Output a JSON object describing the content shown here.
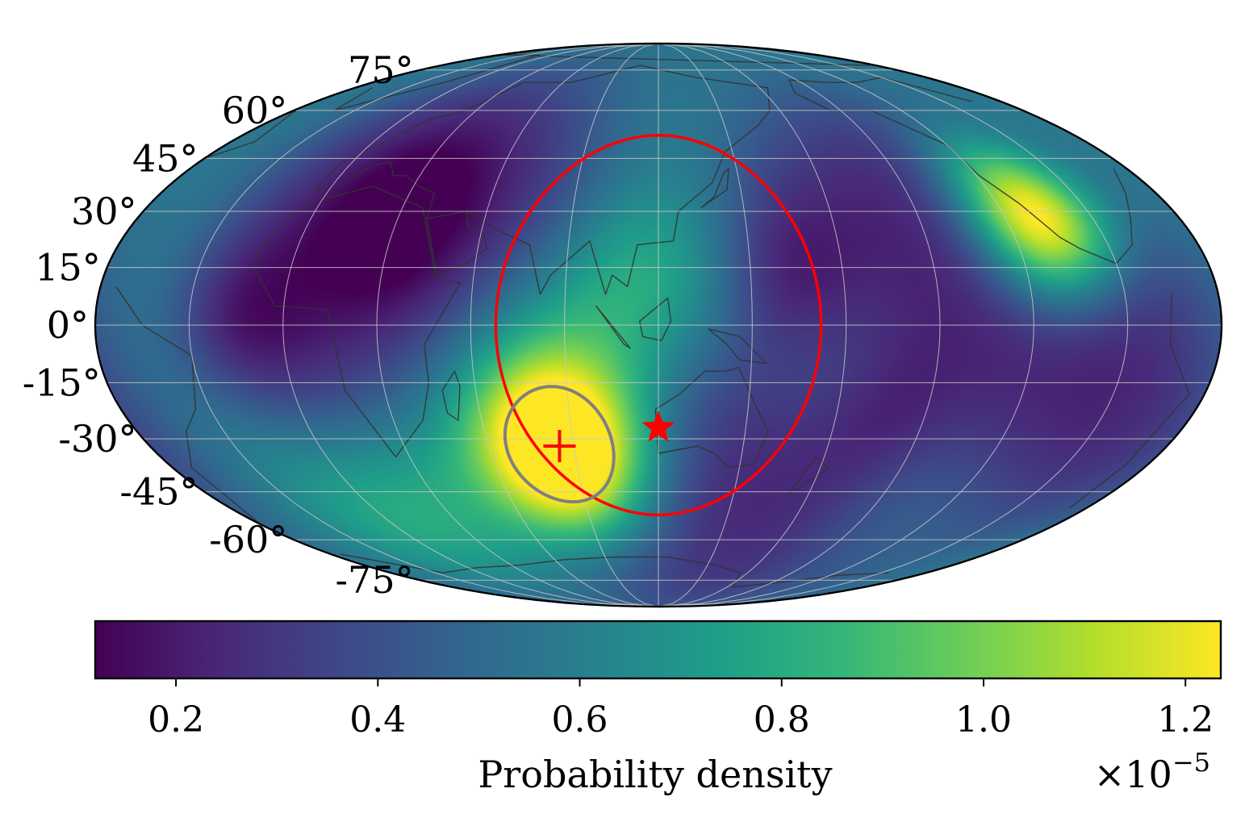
{
  "chart_data": {
    "type": "heatmap",
    "projection": "mollweide",
    "title": "",
    "grid": true,
    "latitude_ticks": [
      75,
      60,
      45,
      30,
      15,
      0,
      -15,
      -30,
      -45,
      -60,
      -75
    ],
    "latitude_labels": [
      "75°",
      "60°",
      "45°",
      "30°",
      "15°",
      "0°",
      "-15°",
      "-30°",
      "-45°",
      "-60°",
      "-75°"
    ],
    "longitude_grid_step_deg": 30,
    "central_longitude_deg": 115,
    "colormap": "viridis",
    "colors": {
      "viridis": [
        "#440154",
        "#482878",
        "#3e4989",
        "#31688e",
        "#26828e",
        "#1f9e89",
        "#35b779",
        "#6ece58",
        "#b5de2b",
        "#fde725"
      ],
      "contour_outer": "#ff0000",
      "contour_inner": "#808080",
      "markers": "#ff0000",
      "coastline": "#333333",
      "gridline": "#c8c8c8"
    },
    "hotspots": [
      {
        "name": "primary-mode",
        "lon_deg": 80,
        "lat_deg": -32,
        "value": 1.2e-05
      },
      {
        "name": "secondary-mode",
        "lon_deg": -115,
        "lat_deg": 28,
        "value": 1.2e-05
      }
    ],
    "colorbar": {
      "label": "Probability density",
      "range": [
        0.12,
        1.235
      ],
      "ticks": [
        0.2,
        0.4,
        0.6,
        0.8,
        1.0,
        1.2
      ],
      "tick_labels": [
        "0.2",
        "0.4",
        "0.6",
        "0.8",
        "1.0",
        "1.2"
      ],
      "scale_base": "×10",
      "scale_exp": "−5"
    },
    "markers": [
      {
        "symbol": "plus",
        "name": "estimated-source",
        "lon_deg": 80,
        "lat_deg": -32
      },
      {
        "symbol": "star",
        "name": "true-source",
        "lon_deg": 115,
        "lat_deg": -27
      }
    ],
    "contours": [
      {
        "name": "outer-credible-region",
        "center_lon_deg": 115,
        "center_lat_deg": 0,
        "radius_deg": 52
      },
      {
        "name": "inner-credible-region",
        "center_lon_deg": 80,
        "center_lat_deg": -32,
        "radius_deg": 16
      }
    ]
  }
}
